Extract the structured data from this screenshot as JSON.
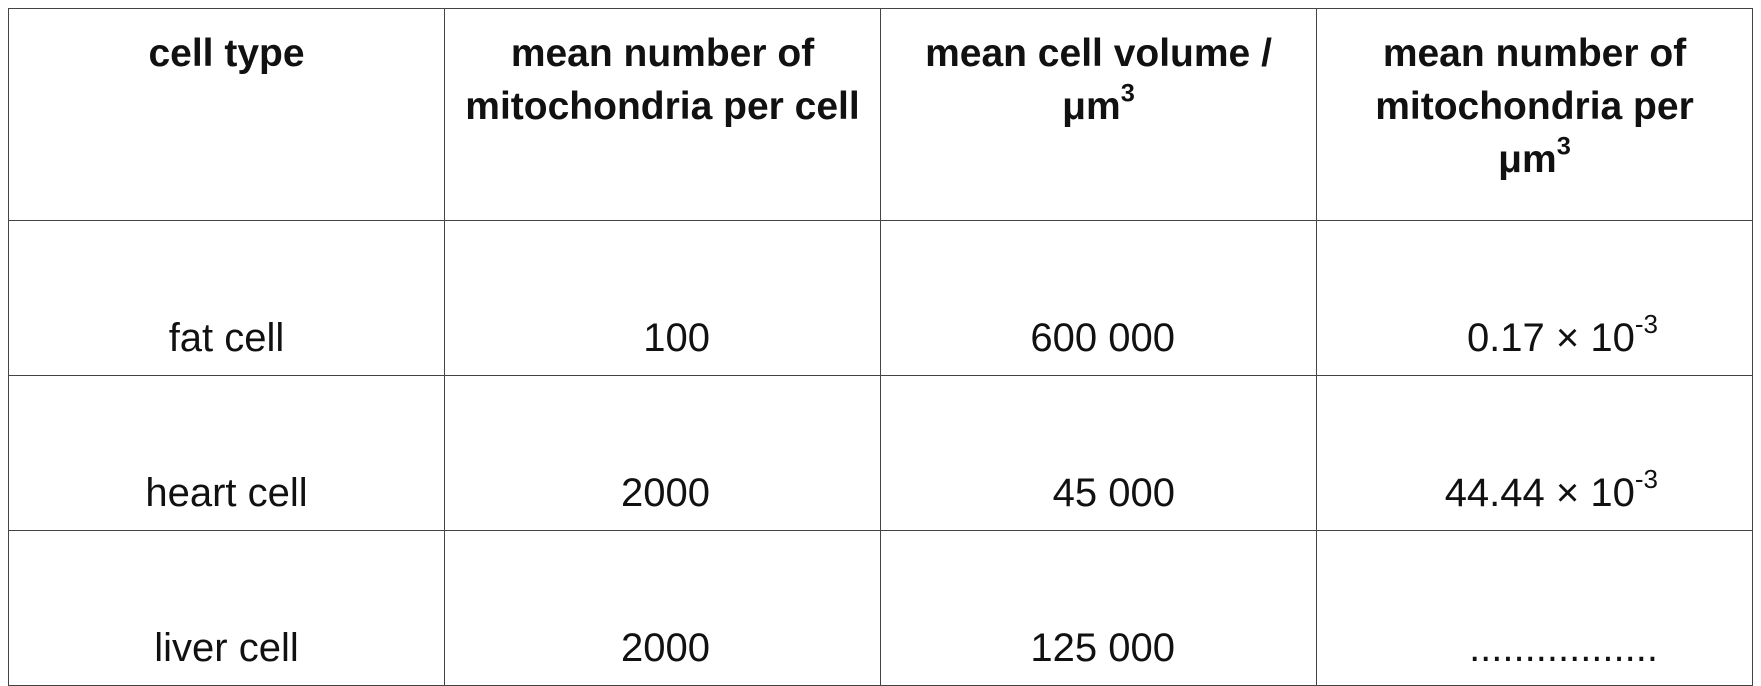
{
  "table": {
    "header": [
      {
        "text": "cell type"
      },
      {
        "text": "mean number of mitochondria per cell"
      },
      {
        "text": "mean cell volume /μm",
        "sup": "3"
      },
      {
        "text": "mean number of mitochondria per μm",
        "sup": "3"
      }
    ],
    "rows": [
      [
        {
          "text": "fat cell"
        },
        {
          "text": "100"
        },
        {
          "text": "600 000"
        },
        {
          "text": "0.17 × 10",
          "sup": "-3"
        }
      ],
      [
        {
          "text": "heart cell"
        },
        {
          "text": "2000"
        },
        {
          "text": "45 000"
        },
        {
          "text": "44.44 × 10",
          "sup": "-3"
        }
      ],
      [
        {
          "text": "liver cell"
        },
        {
          "text": "2000"
        },
        {
          "text": "125 000"
        },
        {
          "text": "................."
        }
      ]
    ]
  }
}
